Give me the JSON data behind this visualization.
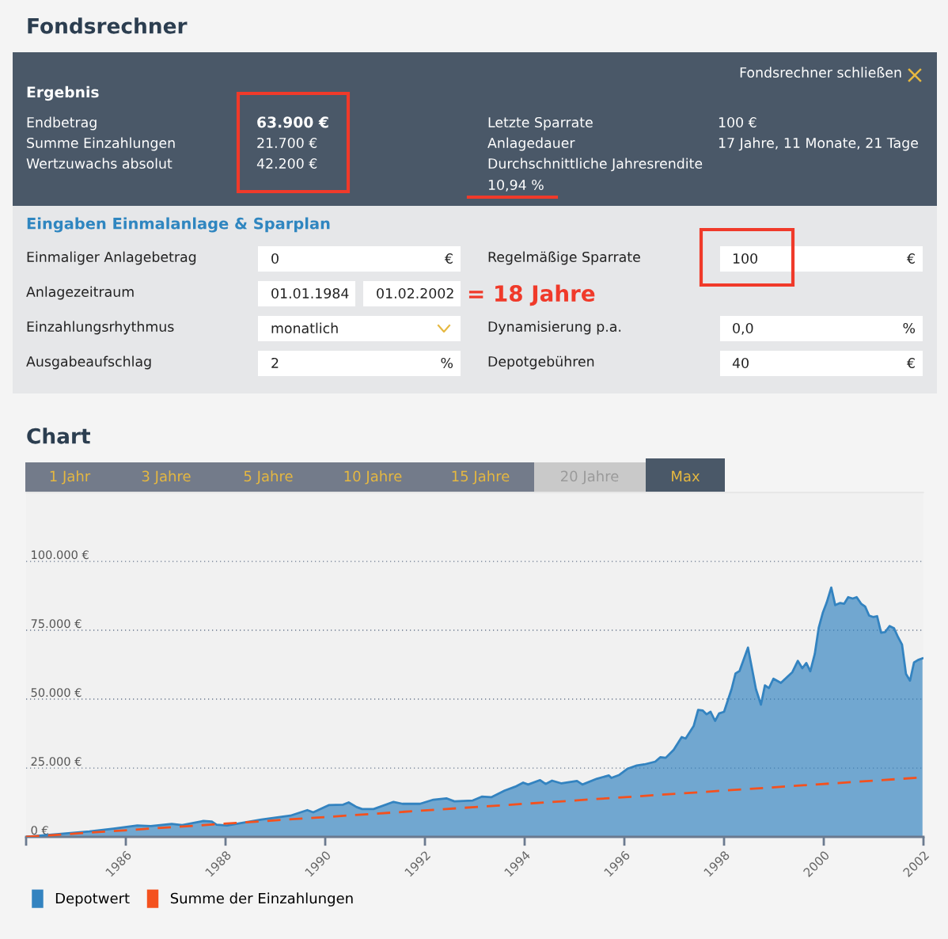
{
  "chart_data": {
    "type": "area",
    "title": "Fondsrechner",
    "subtitle": "Chart",
    "annotations": [
      "Fondsrechner schließen",
      "Ergebnis",
      "Endbetrag",
      "63.900 €",
      "Summe Einzahlungen",
      "21.700 €",
      "Wertzuwachs absolut",
      "42.200 €",
      "Letzte Sparrate",
      "100 €",
      "Anlagedauer",
      "17 Jahre, 11 Monate, 21 Tage",
      "Durchschnittliche Jahresrendite",
      "10,94 %",
      "Eingaben Einmalanlage & Sparplan",
      "Einmaliger Anlagebetrag",
      "0",
      "€",
      "Anlagezeitraum",
      "01.01.1984",
      "01.02.2002",
      "= 18 Jahre",
      "Einzahlungsrhythmus",
      "monatlich",
      "Ausgabeaufschlag",
      "2",
      "%",
      "Regelmäßige Sparrate",
      "100",
      "€",
      "Dynamisierung p.a.",
      "0,0",
      "%",
      "Depotgebühren",
      "40",
      "€",
      "1 Jahr",
      "3 Jahre",
      "5 Jahre",
      "10 Jahre",
      "15 Jahre",
      "20 Jahre",
      "Max"
    ],
    "xlim": [
      1984,
      2002
    ],
    "xticks": [
      {
        "value": 1984,
        "label": null
      },
      1986,
      1988,
      1990,
      1992,
      1994,
      1996,
      1998,
      2000,
      2002
    ],
    "ylim": [
      0,
      125000
    ],
    "yticks": [
      {
        "value": 0,
        "label": "0 €"
      },
      {
        "value": 25000,
        "label": "25.000 €"
      },
      {
        "value": 50000,
        "label": "50.000 €"
      },
      {
        "value": 75000,
        "label": "75.000 €"
      },
      {
        "value": 100000,
        "label": "100.000 €"
      }
    ],
    "grid": "y",
    "legend": "bottom",
    "marker": "none",
    "series": [
      {
        "name": "Depotwert",
        "type": "area",
        "color": "#3383c0",
        "x": [
          1984.0,
          1985.27,
          1985.75,
          1986.23,
          1986.5,
          1986.92,
          1987.13,
          1987.56,
          1987.72,
          1987.82,
          1988.03,
          1988.72,
          1989.3,
          1989.64,
          1989.76,
          1990.07,
          1990.36,
          1990.47,
          1990.63,
          1990.74,
          1990.97,
          1991.37,
          1991.55,
          1991.9,
          1992.17,
          1992.43,
          1992.59,
          1992.96,
          1993.14,
          1993.33,
          1993.6,
          1993.81,
          1993.97,
          1994.07,
          1994.31,
          1994.42,
          1994.55,
          1994.74,
          1995.05,
          1995.16,
          1995.45,
          1995.69,
          1995.74,
          1995.9,
          1996.06,
          1996.25,
          1996.4,
          1996.51,
          1996.62,
          1996.72,
          1996.83,
          1996.99,
          1997.15,
          1997.23,
          1997.39,
          1997.48,
          1997.57,
          1997.65,
          1997.73,
          1997.82,
          1997.9,
          1998.0,
          1998.15,
          1998.23,
          1998.31,
          1998.48,
          1998.64,
          1998.74,
          1998.82,
          1998.9,
          1998.99,
          1999.14,
          1999.37,
          1999.48,
          1999.57,
          1999.65,
          1999.73,
          1999.82,
          1999.9,
          1999.98,
          2000.06,
          2000.15,
          2000.23,
          2000.33,
          2000.41,
          2000.49,
          2000.58,
          2000.66,
          2000.75,
          2000.83,
          2000.91,
          2000.99,
          2001.07,
          2001.15,
          2001.23,
          2001.32,
          2001.41,
          2001.49,
          2001.57,
          2001.65,
          2001.73,
          2001.81,
          2001.89,
          2001.98
        ],
        "values": [
          0,
          2000,
          3000,
          4100,
          3900,
          4700,
          4300,
          5800,
          5600,
          4400,
          4100,
          6300,
          7700,
          9700,
          8900,
          11500,
          11700,
          12500,
          10800,
          10100,
          10100,
          12700,
          12000,
          12000,
          13500,
          14000,
          12900,
          13200,
          14600,
          14400,
          16800,
          18200,
          19700,
          19000,
          20600,
          19200,
          20400,
          19400,
          20300,
          19000,
          21100,
          22300,
          21400,
          22500,
          24700,
          25900,
          26300,
          26800,
          27300,
          28900,
          28700,
          31600,
          36200,
          35700,
          40200,
          46100,
          45900,
          44500,
          45400,
          42100,
          44800,
          45400,
          53600,
          59300,
          60200,
          68700,
          53600,
          48000,
          55000,
          54000,
          57400,
          55900,
          59800,
          63900,
          61200,
          63100,
          60100,
          66400,
          76000,
          81300,
          85100,
          90500,
          84100,
          84900,
          84600,
          87000,
          86500,
          87000,
          84600,
          83600,
          80300,
          79800,
          80100,
          74100,
          74300,
          76500,
          75700,
          72500,
          69800,
          59100,
          56700,
          63300,
          64200,
          64800
        ]
      },
      {
        "name": "Summe der Einzahlungen",
        "type": "line",
        "color": "#f4511e",
        "line_style": "dashed",
        "x": [
          1984,
          2002
        ],
        "values": [
          0,
          21600
        ]
      }
    ]
  }
}
